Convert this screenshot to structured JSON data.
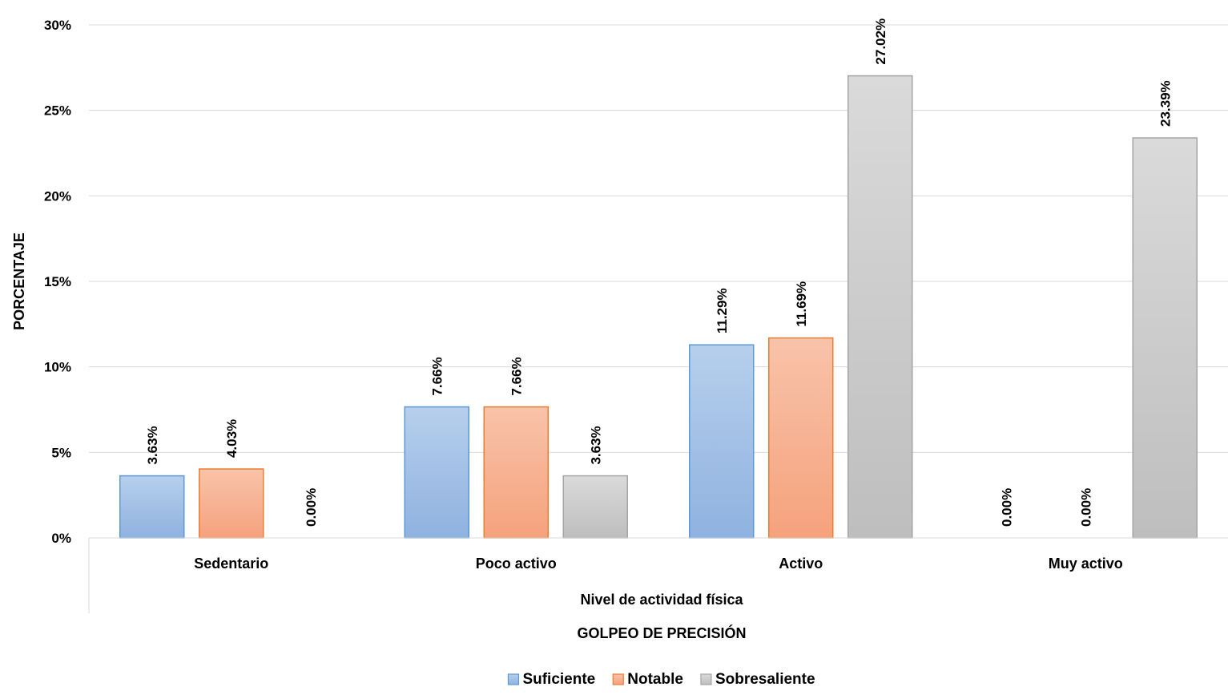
{
  "chart_data": {
    "type": "bar",
    "categories": [
      "Sedentario",
      "Poco activo",
      "Activo",
      "Muy activo"
    ],
    "series": [
      {
        "name": "Suficiente",
        "values": [
          3.63,
          7.66,
          11.29,
          0.0
        ],
        "labels": [
          "3.63%",
          "7.66%",
          "11.29%",
          "0.00%"
        ]
      },
      {
        "name": "Notable",
        "values": [
          4.03,
          7.66,
          11.69,
          0.0
        ],
        "labels": [
          "4.03%",
          "7.66%",
          "11.69%",
          "0.00%"
        ]
      },
      {
        "name": "Sobresaliente",
        "values": [
          0.0,
          3.63,
          27.02,
          23.39
        ],
        "labels": [
          "0.00%",
          "3.63%",
          "27.02%",
          "23.39%"
        ]
      }
    ],
    "ylabel": "PORCENTAJE",
    "xlabel": "Nivel de actividad física",
    "subtitle": "GOLPEO DE PRECISIÓN",
    "ylim": [
      0,
      30
    ],
    "yticks": [
      0,
      5,
      10,
      15,
      20,
      25,
      30
    ],
    "ytick_labels": [
      "0%",
      "5%",
      "10%",
      "15%",
      "20%",
      "25%",
      "30%"
    ],
    "grid": true,
    "legend_position": "bottom",
    "colors": {
      "Suficiente": {
        "top": "#b7cfec",
        "bottom": "#8fb2e0",
        "stroke": "#5b9bd5"
      },
      "Notable": {
        "top": "#f8c3aa",
        "bottom": "#f5a27c",
        "stroke": "#ed7d31"
      },
      "Sobresaliente": {
        "top": "#dadada",
        "bottom": "#bebebe",
        "stroke": "#a5a5a5"
      }
    }
  }
}
